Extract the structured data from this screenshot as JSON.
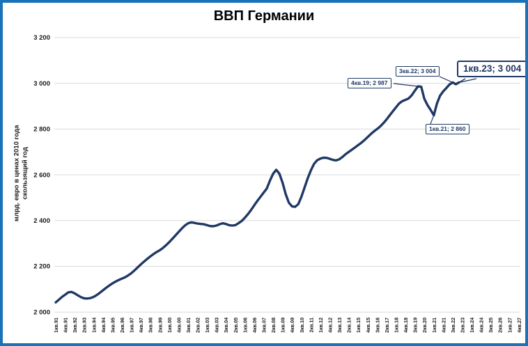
{
  "title": "ВВП Германии",
  "colors": {
    "frame_border": "#1a73b9",
    "line": "#1f3864",
    "gridline": "#d9d9d9",
    "annotation": "#1f3864",
    "background": "#ffffff",
    "text": "#000000"
  },
  "chart_data": {
    "type": "line",
    "title": "ВВП Германии",
    "ylabel_line1": "млрд. евро в ценах 2010 года",
    "ylabel_line2": "скользящий год",
    "series_name": "ВВП Германии, скользящий год, млрд. евро в ценах 2010 года",
    "legend": "none",
    "grid": "horizontal",
    "ylim": [
      2000,
      3200
    ],
    "ytick_step": 200,
    "yticks": [
      "2 000",
      "2 200",
      "2 400",
      "2 600",
      "2 800",
      "3 000",
      "3 200"
    ],
    "x_first_quarter": "1кв.91",
    "x_last_data_quarter": "1кв.23",
    "x_axis_last_label": "4кв.27",
    "x_total_slots": 148,
    "xtick_every_n_quarters": 3,
    "xtick_labels": [
      "1кв.91",
      "4кв.91",
      "3кв.92",
      "2кв.93",
      "1кв.94",
      "4кв.94",
      "3кв.95",
      "2кв.96",
      "1кв.97",
      "4кв.97",
      "3кв.98",
      "2кв.99",
      "1кв.00",
      "4кв.00",
      "3кв.01",
      "2кв.02",
      "1кв.03",
      "4кв.03",
      "3кв.04",
      "2кв.05",
      "1кв.06",
      "4кв.06",
      "3кв.07",
      "2кв.08",
      "1кв.09",
      "4кв.09",
      "3кв.10",
      "2кв.11",
      "1кв.12",
      "4кв.12",
      "3кв.13",
      "2кв.14",
      "1кв.15",
      "4кв.15",
      "3кв.16",
      "2кв.17",
      "1кв.18",
      "4кв.18",
      "3кв.19",
      "2кв.20",
      "1кв.21",
      "4кв.21",
      "3кв.22",
      "2кв.23",
      "1кв.24",
      "4кв.24",
      "3кв.25",
      "2кв.26",
      "1кв.27",
      "4кв.27"
    ],
    "values": [
      2042,
      2054,
      2066,
      2076,
      2086,
      2088,
      2082,
      2073,
      2065,
      2060,
      2059,
      2061,
      2066,
      2074,
      2084,
      2095,
      2106,
      2116,
      2125,
      2133,
      2140,
      2146,
      2152,
      2160,
      2170,
      2182,
      2195,
      2208,
      2220,
      2232,
      2243,
      2253,
      2262,
      2270,
      2280,
      2292,
      2305,
      2320,
      2335,
      2350,
      2365,
      2378,
      2388,
      2392,
      2390,
      2387,
      2385,
      2384,
      2380,
      2376,
      2375,
      2378,
      2384,
      2388,
      2385,
      2380,
      2378,
      2380,
      2388,
      2398,
      2412,
      2428,
      2446,
      2466,
      2486,
      2504,
      2522,
      2540,
      2575,
      2605,
      2622,
      2605,
      2565,
      2515,
      2478,
      2462,
      2460,
      2472,
      2505,
      2545,
      2585,
      2620,
      2648,
      2664,
      2671,
      2675,
      2674,
      2670,
      2665,
      2663,
      2668,
      2678,
      2690,
      2700,
      2710,
      2720,
      2730,
      2740,
      2752,
      2765,
      2778,
      2790,
      2800,
      2812,
      2826,
      2842,
      2860,
      2878,
      2895,
      2912,
      2922,
      2928,
      2934,
      2948,
      2968,
      2987,
      2985,
      2932,
      2905,
      2884,
      2860,
      2912,
      2946,
      2965,
      2980,
      2995,
      3004,
      2996,
      3004
    ],
    "annotations": [
      {
        "label": "4кв.19; 2 987",
        "quarter": "4кв.19",
        "x_index": 115,
        "value": 2987,
        "emphasis": false
      },
      {
        "label": "3кв.22; 3 004",
        "quarter": "3кв.22",
        "x_index": 126,
        "value": 3004,
        "emphasis": false
      },
      {
        "label": "1кв.23; 3 004",
        "quarter": "1кв.23",
        "x_index": 128,
        "value": 3004,
        "emphasis": true
      },
      {
        "label": "1кв.21; 2 860",
        "quarter": "1кв.21",
        "x_index": 120,
        "value": 2860,
        "emphasis": false
      }
    ]
  }
}
